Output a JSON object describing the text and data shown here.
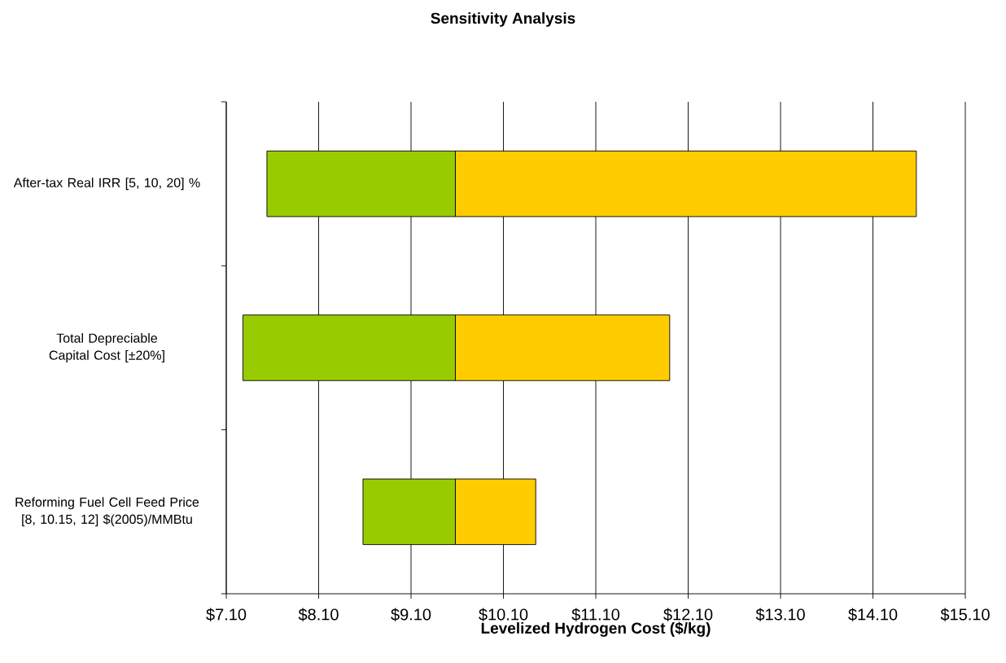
{
  "chart_data": {
    "type": "bar",
    "title": "Sensitivity Analysis",
    "xlabel": "Levelized Hydrogen Cost ($/kg)",
    "categories": [
      "After-tax Real IRR [5, 10, 20] %",
      "Total Depreciable Capital Cost [±20%]",
      "Reforming Fuel Cell Feed Price [8, 10.15, 12] $(2005)/MMBtu"
    ],
    "orientation": "horizontal",
    "series": [
      {
        "color": "#99cc00",
        "base": [
          7.54,
          7.28,
          8.58
        ],
        "values": [
          2.04,
          2.3,
          1.0
        ]
      },
      {
        "color": "#ffcc00",
        "base": [
          9.58,
          9.58,
          9.58
        ],
        "values": [
          4.99,
          2.32,
          0.87
        ]
      }
    ],
    "xlim": [
      7.1,
      15.1
    ],
    "xticks": [
      {
        "value": 7.1,
        "label": "$7.10"
      },
      {
        "value": 8.1,
        "label": "$8.10"
      },
      {
        "value": 9.1,
        "label": "$9.10"
      },
      {
        "value": 10.1,
        "label": "$10.10"
      },
      {
        "value": 11.1,
        "label": "$11.10"
      },
      {
        "value": 12.1,
        "label": "$12.10"
      },
      {
        "value": 13.1,
        "label": "$13.10"
      },
      {
        "value": 14.1,
        "label": "$14.10"
      },
      {
        "value": 15.1,
        "label": "$15.10"
      }
    ],
    "grid": "x"
  }
}
